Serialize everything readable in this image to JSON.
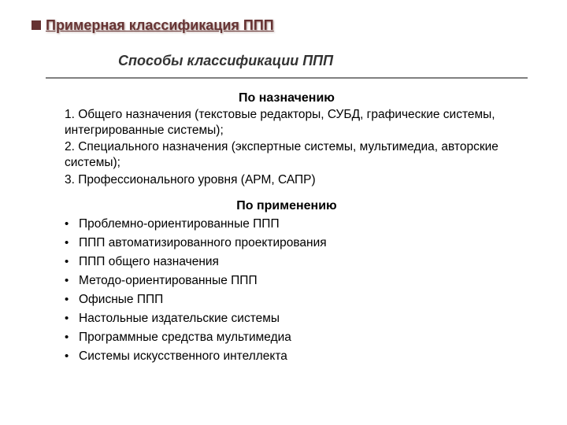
{
  "colors": {
    "title_color": "#663333",
    "text_color": "#000000",
    "hr_color": "#808080",
    "bg_color": "#ffffff"
  },
  "typography": {
    "title_fontsize": 18,
    "subtitle_fontsize": 18,
    "heading_fontsize": 16,
    "body_fontsize": 15.5,
    "font_family": "Verdana, Arial, sans-serif"
  },
  "mainTitle": "Примерная классификация ППП",
  "subtitle": "Способы классификации ППП",
  "section1": {
    "heading": "По назначению",
    "items": [
      "1.  Общего назначения (текстовые редакторы, СУБД, графические системы, интегрированные системы);",
      "2.  Специального назначения (экспертные системы, мультимедиа, авторские системы);",
      "3.  Профессионального уровня (АРМ, САПР)"
    ]
  },
  "section2": {
    "heading": "По применению",
    "items": [
      "Проблемно-ориентированные ППП",
      "ППП автоматизированного проектирования",
      "ППП общего назначения",
      "Методо-ориентированные ППП",
      "Офисные ППП",
      "Настольные издательские системы",
      "Программные средства мультимедиа",
      "Системы искусственного интеллекта"
    ]
  }
}
